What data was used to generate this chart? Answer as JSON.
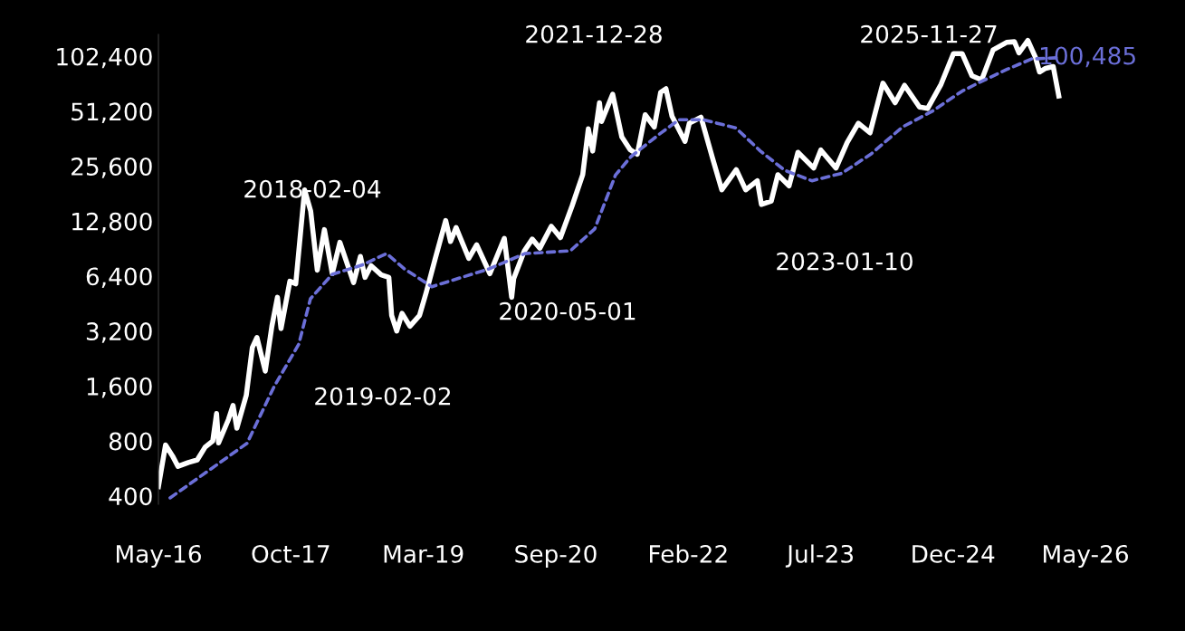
{
  "chart_data": {
    "type": "line",
    "log": "y",
    "grid": false,
    "marker": "none",
    "xlim": [
      "2016-05-20",
      "2026-05-21"
    ],
    "ylim": [
      360,
      135000
    ],
    "xticks": [
      {
        "value": "2016-05-20",
        "label": "May-16"
      },
      {
        "value": "2017-10-24",
        "label": "Oct-17"
      },
      {
        "value": "2019-03-30",
        "label": "Mar-19"
      },
      {
        "value": "2020-09-02",
        "label": "Sep-20"
      },
      {
        "value": "2022-02-06",
        "label": "Feb-22"
      },
      {
        "value": "2023-07-13",
        "label": "Jul-23"
      },
      {
        "value": "2024-12-15",
        "label": "Dec-24"
      },
      {
        "value": "2026-05-21",
        "label": "May-26"
      }
    ],
    "yticks": [
      400,
      800,
      {
        "value": 1600,
        "label": "1,600"
      },
      {
        "value": 3200,
        "label": "3,200"
      },
      {
        "value": 6400,
        "label": "6,400"
      },
      {
        "value": 12800,
        "label": "12,800"
      },
      {
        "value": 25600,
        "label": "25,600"
      },
      {
        "value": 51200,
        "label": "51,200"
      },
      {
        "value": 102400,
        "label": "102,400"
      }
    ],
    "series": [
      {
        "color": "#ffffff",
        "line_style": "solid",
        "x": [
          "2016-05-20",
          "2016-06-17",
          "2016-07-15",
          "2016-08-05",
          "2016-09-15",
          "2016-10-20",
          "2016-11-20",
          "2016-12-20",
          "2017-01-04",
          "2017-01-12",
          "2017-02-20",
          "2017-03-10",
          "2017-03-25",
          "2017-05-01",
          "2017-05-25",
          "2017-06-12",
          "2017-07-15",
          "2017-08-10",
          "2017-09-01",
          "2017-09-15",
          "2017-10-20",
          "2017-11-12",
          "2017-11-28",
          "2017-12-17",
          "2018-01-10",
          "2018-02-05",
          "2018-03-05",
          "2018-04-05",
          "2018-05-05",
          "2018-06-28",
          "2018-07-25",
          "2018-08-12",
          "2018-09-05",
          "2018-10-15",
          "2018-11-14",
          "2018-11-25",
          "2018-12-15",
          "2019-01-05",
          "2019-02-05",
          "2019-03-15",
          "2019-04-10",
          "2019-05-15",
          "2019-06-26",
          "2019-07-15",
          "2019-08-06",
          "2019-09-25",
          "2019-10-26",
          "2019-12-17",
          "2020-02-12",
          "2020-03-12",
          "2020-03-20",
          "2020-05-01",
          "2020-06-01",
          "2020-07-01",
          "2020-08-15",
          "2020-09-20",
          "2020-11-05",
          "2020-12-17",
          "2021-01-08",
          "2021-01-25",
          "2021-02-21",
          "2021-03-01",
          "2021-04-14",
          "2021-05-20",
          "2021-06-22",
          "2021-07-20",
          "2021-08-20",
          "2021-09-25",
          "2021-10-20",
          "2021-11-10",
          "2021-12-04",
          "2022-01-24",
          "2022-02-10",
          "2022-03-28",
          "2022-05-12",
          "2022-06-18",
          "2022-08-14",
          "2022-09-20",
          "2022-11-05",
          "2022-11-21",
          "2022-12-30",
          "2023-01-25",
          "2023-03-10",
          "2023-04-14",
          "2023-06-15",
          "2023-07-13",
          "2023-09-11",
          "2023-10-25",
          "2023-12-08",
          "2024-01-23",
          "2024-03-14",
          "2024-05-01",
          "2024-06-07",
          "2024-08-05",
          "2024-09-06",
          "2024-10-29",
          "2024-12-17",
          "2025-01-20",
          "2025-02-28",
          "2025-04-07",
          "2025-05-22",
          "2025-07-14",
          "2025-08-14",
          "2025-09-01",
          "2025-10-06",
          "2025-11-05",
          "2025-11-21",
          "2025-12-15",
          "2026-01-14",
          "2026-02-05"
        ],
        "values": [
          450,
          760,
          660,
          580,
          610,
          630,
          740,
          800,
          1130,
          780,
          1050,
          1250,
          940,
          1420,
          2600,
          2950,
          1930,
          3400,
          4900,
          3300,
          6000,
          5800,
          10000,
          19000,
          14500,
          6900,
          11500,
          6600,
          9800,
          5900,
          8200,
          6300,
          7300,
          6500,
          6300,
          3900,
          3200,
          4000,
          3400,
          3900,
          5200,
          7900,
          12900,
          9900,
          11800,
          8000,
          9500,
          6600,
          10300,
          4900,
          6200,
          8800,
          10200,
          9100,
          12000,
          10400,
          15500,
          23000,
          41000,
          31000,
          57000,
          45000,
          63500,
          37000,
          31500,
          29800,
          49000,
          42000,
          65000,
          68000,
          48000,
          35000,
          44000,
          47500,
          28500,
          19000,
          24500,
          19000,
          21300,
          15800,
          16500,
          23000,
          20000,
          30500,
          25000,
          31400,
          25000,
          34500,
          44000,
          39000,
          73000,
          57000,
          71000,
          54000,
          53000,
          72000,
          106000,
          106000,
          80000,
          76000,
          111000,
          122000,
          123000,
          107000,
          125000,
          101000,
          84000,
          88000,
          90000,
          62000
        ]
      },
      {
        "color": "#6b6fd8",
        "line_style": "dashed",
        "x": [
          "2016-07-05",
          "2017-05-04",
          "2017-08-19",
          "2017-11-24",
          "2018-01-09",
          "2018-04-05",
          "2018-07-31",
          "2018-11-05",
          "2019-01-15",
          "2019-05-02",
          "2019-12-13",
          "2020-05-03",
          "2020-10-29",
          "2021-02-02",
          "2021-04-25",
          "2021-06-25",
          "2021-10-20",
          "2021-12-31",
          "2022-04-06",
          "2022-08-12",
          "2022-11-17",
          "2023-02-21",
          "2023-06-08",
          "2023-10-04",
          "2024-01-29",
          "2024-05-30",
          "2024-09-24",
          "2025-01-20",
          "2025-04-01",
          "2025-07-17",
          "2025-10-21",
          "2026-01-25"
        ],
        "values": [
          390,
          776,
          1590,
          2710,
          4810,
          6550,
          7350,
          8500,
          7000,
          5600,
          7000,
          8500,
          8800,
          11600,
          22900,
          28900,
          38800,
          46000,
          46000,
          41500,
          31000,
          24300,
          21300,
          23400,
          30000,
          42000,
          51200,
          66000,
          74000,
          87000,
          99000,
          100485
        ]
      }
    ],
    "annotations": [
      "2018-02-04",
      "2019-02-02",
      "2020-05-01",
      "2021-12-28",
      "2023-01-10",
      "2025-11-27",
      {
        "text": "100,485",
        "x": "2026-01-25",
        "y": 100485
      }
    ]
  }
}
